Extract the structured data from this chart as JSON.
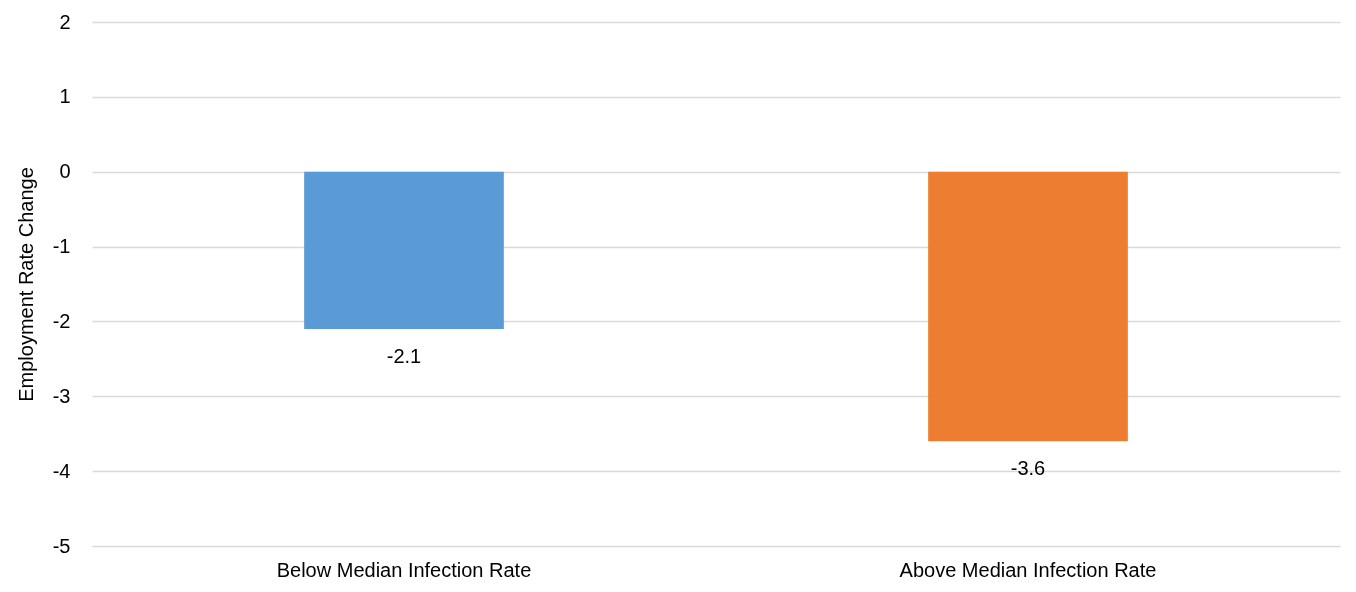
{
  "chart_data": {
    "type": "bar",
    "ylabel": "Employment Rate Change",
    "categories": [
      "Below Median Infection Rate",
      "Above Median Infection Rate"
    ],
    "values": [
      -2.1,
      -3.6
    ],
    "colors": [
      "#5b9bd5",
      "#ed7d31"
    ],
    "ylim": [
      -5,
      2
    ],
    "yticks": [
      -5,
      -4,
      -3,
      -2,
      -1,
      0,
      1,
      2
    ],
    "grid": "y",
    "data_labels": true
  }
}
